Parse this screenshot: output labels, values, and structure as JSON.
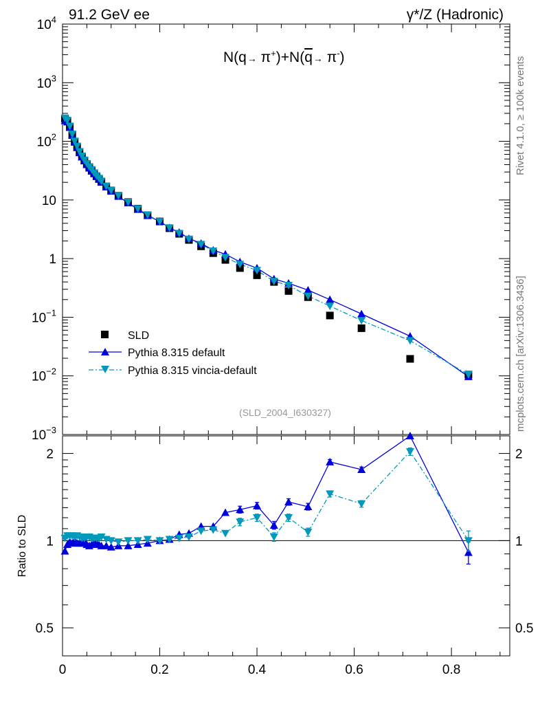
{
  "header": {
    "left": "91.2 GeV ee",
    "right": "γ*/Z (Hadronic)"
  },
  "side": {
    "rivet": "Rivet 4.1.0, ≥ 100k events",
    "mcplots": "mcplots.cern.ch [arXiv:1306.3436]"
  },
  "colors": {
    "sld": "#000000",
    "default": "#0000dd",
    "vincia": "#0099bb"
  },
  "chart_data": {
    "type": "scatter",
    "title": "N(q → π⁺)+N(q̄ → π⁻)",
    "title_parts": {
      "a": "N(q",
      "b": " π",
      "c": "+",
      "d": ")+N(",
      "e": "q",
      "f": " π",
      "g": "-",
      "h": ")"
    },
    "analysis_id": "(SLD_2004_I630327)",
    "xlabel": "",
    "ylabel_ratio": "Ratio to SLD",
    "xlim": [
      0,
      0.92
    ],
    "ylim_main": [
      0.001,
      10000
    ],
    "ylim_ratio": [
      0.4,
      2.3
    ],
    "xticks": [
      {
        "v": 0,
        "label": "0"
      },
      {
        "v": 0.2,
        "label": "0.2"
      },
      {
        "v": 0.4,
        "label": "0.4"
      },
      {
        "v": 0.6,
        "label": "0.6"
      },
      {
        "v": 0.8,
        "label": "0.8"
      }
    ],
    "yticks_main": [
      {
        "v": 10000,
        "base": "10",
        "exp": "4"
      },
      {
        "v": 1000,
        "base": "10",
        "exp": "3"
      },
      {
        "v": 100,
        "base": "10",
        "exp": "2"
      },
      {
        "v": 10,
        "base": "10",
        "exp": ""
      },
      {
        "v": 1,
        "base": "1",
        "exp": ""
      },
      {
        "v": 0.1,
        "base": "10",
        "exp": "−1"
      },
      {
        "v": 0.01,
        "base": "10",
        "exp": "−2"
      },
      {
        "v": 0.001,
        "base": "10",
        "exp": "−3"
      }
    ],
    "yticks_ratio": [
      {
        "v": 0.5,
        "label": "0.5"
      },
      {
        "v": 1,
        "label": "1"
      },
      {
        "v": 2,
        "label": "2"
      }
    ],
    "legend": [
      {
        "key": "sld",
        "label": "SLD"
      },
      {
        "key": "default",
        "label": "Pythia 8.315 default"
      },
      {
        "key": "vincia",
        "label": "Pythia 8.315 vincia-default"
      }
    ],
    "x": [
      0.005,
      0.01,
      0.015,
      0.02,
      0.025,
      0.03,
      0.035,
      0.04,
      0.045,
      0.05,
      0.055,
      0.06,
      0.065,
      0.07,
      0.075,
      0.08,
      0.09,
      0.1,
      0.115,
      0.135,
      0.155,
      0.175,
      0.2,
      0.22,
      0.24,
      0.26,
      0.285,
      0.31,
      0.335,
      0.365,
      0.4,
      0.435,
      0.465,
      0.505,
      0.55,
      0.615,
      0.715,
      0.835
    ],
    "series": [
      {
        "name": "SLD",
        "values": [
          245,
          220,
          175,
          128,
          98,
          80,
          65,
          55,
          47,
          41,
          36,
          32,
          28.5,
          25.5,
          23,
          20.5,
          17,
          14.5,
          11.8,
          9.2,
          7.1,
          5.5,
          4.3,
          3.3,
          2.65,
          2.08,
          1.62,
          1.24,
          0.95,
          0.69,
          0.52,
          0.4,
          0.28,
          0.22,
          0.107,
          0.065,
          0.0195,
          0.0105
        ]
      },
      {
        "name": "Pythia 8.315 default",
        "values": [
          225,
          214,
          173,
          126,
          98,
          78,
          64,
          54,
          47,
          40,
          35,
          31,
          28,
          25,
          22.5,
          20,
          16.7,
          14.1,
          11.5,
          8.9,
          6.9,
          5.4,
          4.3,
          3.35,
          2.8,
          2.2,
          1.82,
          1.39,
          1.19,
          0.88,
          0.69,
          0.45,
          0.38,
          0.29,
          0.2,
          0.114,
          0.0475,
          0.0097
        ],
        "ratio": [
          0.92,
          0.97,
          0.99,
          0.98,
          1.0,
          0.98,
          0.98,
          0.98,
          1.0,
          0.97,
          0.96,
          0.97,
          0.98,
          0.98,
          0.97,
          0.96,
          0.96,
          0.95,
          0.96,
          0.96,
          0.97,
          0.98,
          1.0,
          1.01,
          1.05,
          1.06,
          1.12,
          1.12,
          1.25,
          1.28,
          1.32,
          1.13,
          1.36,
          1.31,
          1.87,
          1.76,
          2.43,
          0.91
        ]
      },
      {
        "name": "Pythia 8.315 vincia-default",
        "values": [
          250,
          230,
          182,
          133,
          101,
          83,
          67,
          56,
          48,
          42,
          37,
          33,
          29,
          26,
          23.5,
          21,
          17.2,
          14.6,
          11.9,
          9.2,
          7.1,
          5.6,
          4.3,
          3.35,
          2.7,
          2.15,
          1.75,
          1.35,
          1.05,
          0.8,
          0.63,
          0.41,
          0.35,
          0.23,
          0.155,
          0.088,
          0.04,
          0.0105
        ],
        "ratio": [
          1.02,
          1.04,
          1.04,
          1.04,
          1.03,
          1.04,
          1.03,
          1.02,
          1.02,
          1.03,
          1.03,
          1.02,
          1.02,
          1.02,
          1.02,
          1.03,
          1.01,
          1.0,
          0.99,
          1.0,
          1.0,
          1.01,
          1.0,
          1.01,
          1.02,
          1.03,
          1.08,
          1.09,
          1.06,
          1.16,
          1.2,
          1.03,
          1.2,
          1.07,
          1.45,
          1.34,
          2.03,
          1.0
        ]
      }
    ]
  }
}
